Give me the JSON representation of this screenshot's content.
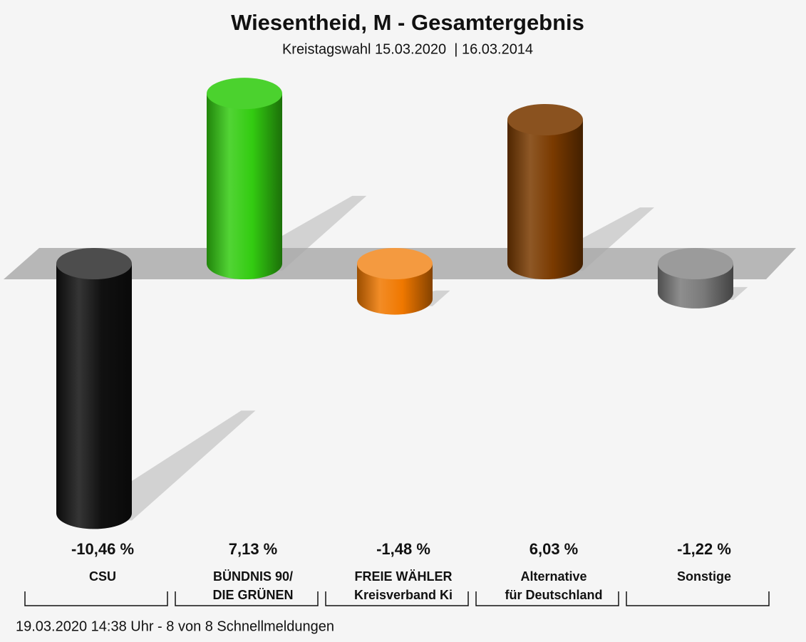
{
  "chart_data": {
    "type": "bar",
    "title": "Wiesentheid, M - Gesamtergebnis",
    "subtitle": "Kreistagswahl 15.03.2020  | 16.03.2014",
    "categories": [
      [
        "CSU"
      ],
      [
        "BÜNDNIS 90/",
        "DIE GRÜNEN"
      ],
      [
        "FREIE WÄHLER",
        "Kreisverband Ki"
      ],
      [
        "Alternative",
        "für Deutschland"
      ],
      [
        "Sonstige"
      ]
    ],
    "values": [
      -10.46,
      7.13,
      -1.48,
      6.03,
      -1.22
    ],
    "value_labels": [
      "-10,46 %",
      "7,13 %",
      "-1,48 %",
      "6,03 %",
      "-1,22 %"
    ],
    "colors": [
      "#111111",
      "#33cc11",
      "#f07800",
      "#7a3a00",
      "#7a7a7a"
    ],
    "footer": "19.03.2020 14:38 Uhr - 8 von 8 Schnellmeldungen"
  }
}
